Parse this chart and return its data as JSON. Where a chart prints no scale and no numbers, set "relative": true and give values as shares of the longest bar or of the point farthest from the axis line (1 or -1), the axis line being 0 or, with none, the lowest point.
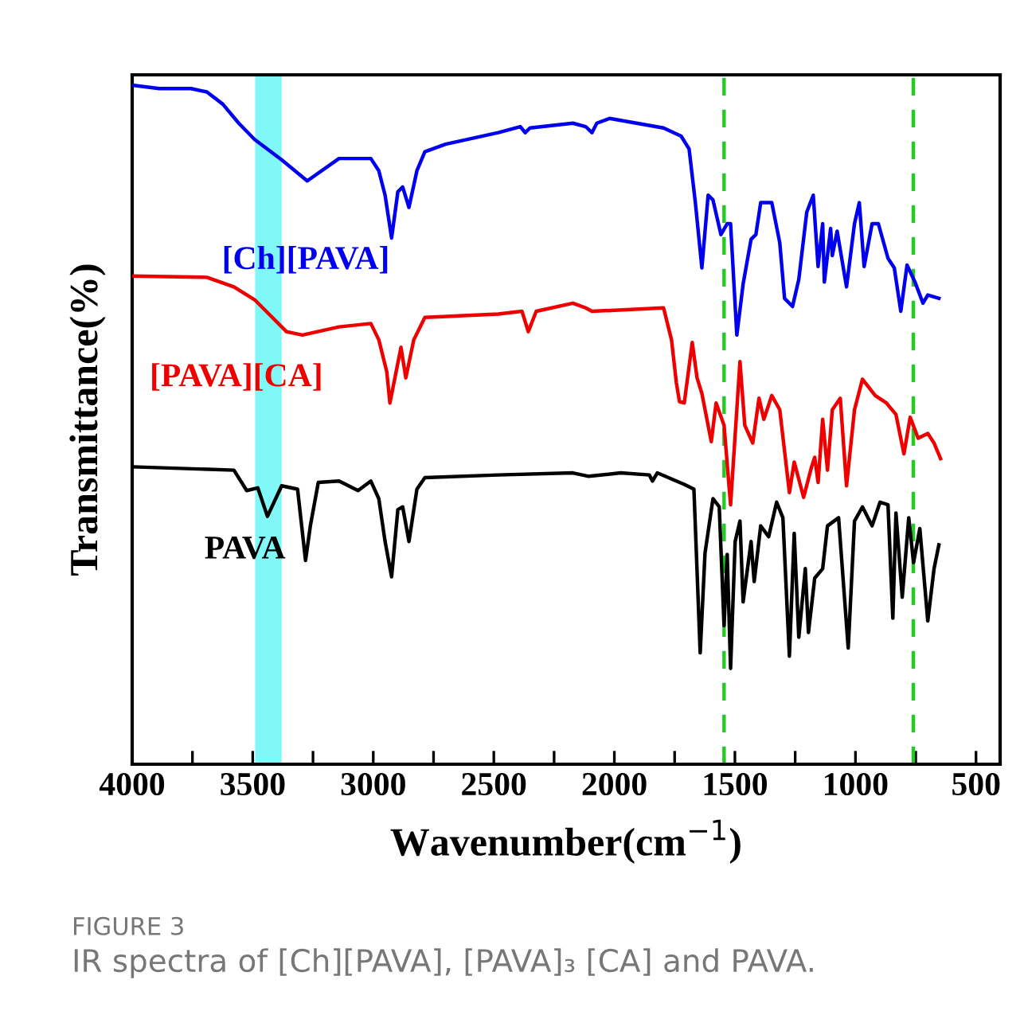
{
  "chart_data": {
    "type": "line",
    "relative": true,
    "xlabel": "Wavenumber(cm$^{−1}$)",
    "ylabel": "Transmittance(%)",
    "xlim": [
      4000,
      400
    ],
    "xticks": [
      4000,
      {
        "value": 3750,
        "label": null
      },
      3500,
      {
        "value": 3250,
        "label": null
      },
      3000,
      {
        "value": 2750,
        "label": null
      },
      2500,
      {
        "value": 2250,
        "label": null
      },
      2000,
      {
        "value": 1750,
        "label": null
      },
      1500,
      {
        "value": 1250,
        "label": null
      },
      1000,
      {
        "value": 750,
        "label": null
      },
      500
    ],
    "tick_labels": "x",
    "grid": false,
    "legend": false,
    "marker": "none",
    "line_style": "solid",
    "series": [
      {
        "name": "[Ch][PAVA]",
        "color": "#0000ee",
        "x": [
          4000,
          3888,
          3756,
          3690,
          3624,
          3558,
          3492,
          3380,
          3274,
          3142,
          3010,
          2977,
          2951,
          2924,
          2898,
          2878,
          2852,
          2819,
          2786,
          2700,
          2482,
          2390,
          2370,
          2350,
          2172,
          2119,
          2093,
          2073,
          2020,
          1796,
          1723,
          1690,
          1664,
          1637,
          1611,
          1591,
          1558,
          1532,
          1518,
          1492,
          1466,
          1433,
          1413,
          1393,
          1347,
          1314,
          1294,
          1261,
          1235,
          1202,
          1175,
          1155,
          1136,
          1129,
          1103,
          1096,
          1076,
          1037,
          1004,
          984,
          964,
          931,
          905,
          865,
          839,
          812,
          786,
          753,
          720,
          700,
          654
        ],
        "values": [
          1.0,
          0.995,
          0.995,
          0.99,
          0.972,
          0.944,
          0.92,
          0.89,
          0.859,
          0.892,
          0.892,
          0.874,
          0.838,
          0.775,
          0.843,
          0.85,
          0.82,
          0.874,
          0.902,
          0.913,
          0.93,
          0.939,
          0.93,
          0.937,
          0.944,
          0.939,
          0.93,
          0.944,
          0.951,
          0.937,
          0.925,
          0.906,
          0.827,
          0.731,
          0.838,
          0.831,
          0.78,
          0.796,
          0.796,
          0.632,
          0.707,
          0.773,
          0.78,
          0.827,
          0.827,
          0.768,
          0.686,
          0.674,
          0.714,
          0.813,
          0.838,
          0.733,
          0.796,
          0.71,
          0.789,
          0.749,
          0.785,
          0.703,
          0.796,
          0.827,
          0.733,
          0.796,
          0.796,
          0.745,
          0.731,
          0.667,
          0.735,
          0.71,
          0.679,
          0.691,
          0.686
        ]
      },
      {
        "name": "[PAVA][CA]",
        "color": "#ee0000",
        "x": [
          4000,
          3690,
          3578,
          3492,
          3360,
          3294,
          3142,
          3010,
          2977,
          2944,
          2931,
          2885,
          2865,
          2832,
          2786,
          2482,
          2383,
          2357,
          2324,
          2172,
          2119,
          2093,
          1796,
          1763,
          1743,
          1730,
          1710,
          1677,
          1657,
          1637,
          1598,
          1578,
          1545,
          1518,
          1479,
          1459,
          1426,
          1400,
          1380,
          1347,
          1314,
          1274,
          1254,
          1215,
          1182,
          1169,
          1155,
          1136,
          1116,
          1096,
          1063,
          1037,
          1004,
          971,
          918,
          872,
          832,
          799,
          773,
          740,
          700,
          674,
          647
        ],
        "values": [
          0.719,
          0.717,
          0.703,
          0.684,
          0.637,
          0.632,
          0.644,
          0.649,
          0.625,
          0.578,
          0.532,
          0.614,
          0.569,
          0.625,
          0.658,
          0.663,
          0.667,
          0.637,
          0.667,
          0.679,
          0.672,
          0.667,
          0.672,
          0.625,
          0.562,
          0.534,
          0.532,
          0.621,
          0.569,
          0.546,
          0.475,
          0.532,
          0.499,
          0.382,
          0.593,
          0.499,
          0.473,
          0.539,
          0.508,
          0.543,
          0.522,
          0.4,
          0.445,
          0.393,
          0.438,
          0.452,
          0.415,
          0.508,
          0.433,
          0.522,
          0.539,
          0.41,
          0.522,
          0.567,
          0.543,
          0.532,
          0.515,
          0.457,
          0.511,
          0.48,
          0.487,
          0.473,
          0.45
        ]
      },
      {
        "name": "PAVA",
        "color": "#000000",
        "x": [
          4000,
          3578,
          3525,
          3479,
          3439,
          3380,
          3314,
          3281,
          3261,
          3228,
          3142,
          3063,
          3010,
          2977,
          2951,
          2924,
          2898,
          2878,
          2852,
          2819,
          2786,
          2482,
          2172,
          2106,
          1974,
          1855,
          1842,
          1822,
          1710,
          1670,
          1644,
          1624,
          1591,
          1565,
          1545,
          1532,
          1518,
          1499,
          1479,
          1466,
          1433,
          1420,
          1393,
          1360,
          1327,
          1301,
          1274,
          1254,
          1235,
          1208,
          1195,
          1169,
          1136,
          1116,
          1070,
          1030,
          1004,
          971,
          931,
          898,
          865,
          845,
          832,
          806,
          779,
          759,
          733,
          700,
          674,
          654
        ],
        "values": [
          0.438,
          0.433,
          0.403,
          0.407,
          0.365,
          0.41,
          0.405,
          0.3,
          0.351,
          0.415,
          0.417,
          0.403,
          0.417,
          0.391,
          0.328,
          0.276,
          0.375,
          0.379,
          0.328,
          0.405,
          0.422,
          0.426,
          0.429,
          0.424,
          0.429,
          0.426,
          0.417,
          0.429,
          0.412,
          0.405,
          0.164,
          0.311,
          0.391,
          0.379,
          0.204,
          0.309,
          0.141,
          0.328,
          0.358,
          0.239,
          0.328,
          0.269,
          0.351,
          0.335,
          0.386,
          0.363,
          0.159,
          0.34,
          0.187,
          0.288,
          0.194,
          0.274,
          0.288,
          0.351,
          0.363,
          0.171,
          0.358,
          0.379,
          0.351,
          0.386,
          0.382,
          0.215,
          0.37,
          0.246,
          0.363,
          0.297,
          0.347,
          0.211,
          0.288,
          0.323
        ]
      }
    ],
    "bands": [
      {
        "axis": "x",
        "from": 3490,
        "to": 3380,
        "color": "#80f8f8"
      }
    ],
    "ref_lines": [
      {
        "axis": "x",
        "value": 1545,
        "color": "#22cc22",
        "line_style": "dashed"
      },
      {
        "axis": "x",
        "value": 760,
        "color": "#22cc22",
        "line_style": "dashed"
      }
    ],
    "annotations": [
      "FIGURE 3",
      "IR spectra of [Ch][PAVA], [PAVA]₃ [CA] and PAVA."
    ]
  }
}
